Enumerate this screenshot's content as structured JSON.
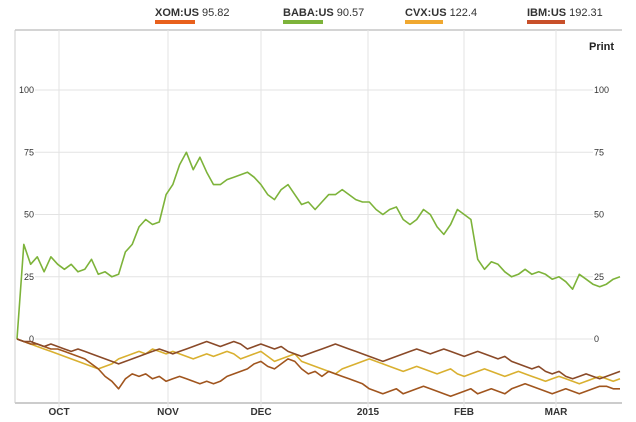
{
  "legend": [
    {
      "symbol": "XOM:US",
      "value": "95.82",
      "color": "#e8601c"
    },
    {
      "symbol": "BABA:US",
      "value": "90.57",
      "color": "#7db33a"
    },
    {
      "symbol": "CVX:US",
      "value": "122.4",
      "color": "#f0a830"
    },
    {
      "symbol": "IBM:US",
      "value": "192.31",
      "color": "#c8502a"
    }
  ],
  "print_label": "Print",
  "chart_data": {
    "type": "line",
    "x_labels": [
      "OCT",
      "NOV",
      "DEC",
      "2015",
      "FEB",
      "MAR"
    ],
    "y_ticks": [
      0,
      25,
      50,
      75,
      100
    ],
    "ylim": [
      -25,
      115
    ],
    "grid": true,
    "series": [
      {
        "name": "BABA:US",
        "color": "#7db33a",
        "values": [
          0,
          38,
          30,
          33,
          27,
          33,
          30,
          28,
          30,
          27,
          28,
          32,
          26,
          27,
          25,
          26,
          35,
          38,
          45,
          48,
          46,
          47,
          58,
          62,
          70,
          75,
          68,
          73,
          67,
          62,
          62,
          64,
          65,
          66,
          67,
          65,
          62,
          58,
          56,
          60,
          62,
          58,
          54,
          55,
          52,
          55,
          58,
          58,
          60,
          58,
          56,
          55,
          55,
          52,
          50,
          52,
          53,
          48,
          46,
          48,
          52,
          50,
          45,
          42,
          46,
          52,
          50,
          48,
          32,
          28,
          31,
          30,
          27,
          25,
          26,
          28,
          26,
          27,
          26,
          24,
          25,
          23,
          20,
          26,
          24,
          22,
          21,
          22,
          24,
          25
        ]
      },
      {
        "name": "XOM:US",
        "color": "#a0551e",
        "values": [
          0,
          -1,
          -2,
          -2,
          -3,
          -4,
          -4,
          -5,
          -6,
          -7,
          -8,
          -10,
          -12,
          -15,
          -17,
          -20,
          -16,
          -14,
          -15,
          -14,
          -16,
          -15,
          -17,
          -16,
          -15,
          -16,
          -17,
          -18,
          -17,
          -18,
          -17,
          -15,
          -14,
          -13,
          -12,
          -10,
          -9,
          -11,
          -12,
          -10,
          -8,
          -9,
          -12,
          -14,
          -13,
          -15,
          -13,
          -14,
          -15,
          -16,
          -17,
          -18,
          -20,
          -21,
          -22,
          -21,
          -20,
          -22,
          -21,
          -20,
          -19,
          -20,
          -21,
          -22,
          -23,
          -22,
          -21,
          -20,
          -22,
          -21,
          -20,
          -21,
          -22,
          -20,
          -19,
          -18,
          -19,
          -20,
          -21,
          -22,
          -21,
          -20,
          -21,
          -22,
          -21,
          -20,
          -19,
          -19,
          -20,
          -20
        ]
      },
      {
        "name": "CVX:US",
        "color": "#d9b030",
        "values": [
          0,
          -1,
          -2,
          -3,
          -4,
          -5,
          -6,
          -7,
          -8,
          -9,
          -10,
          -11,
          -12,
          -11,
          -10,
          -8,
          -7,
          -6,
          -5,
          -6,
          -4,
          -5,
          -6,
          -5,
          -6,
          -7,
          -8,
          -7,
          -6,
          -7,
          -6,
          -5,
          -6,
          -8,
          -7,
          -6,
          -5,
          -7,
          -9,
          -8,
          -7,
          -6,
          -9,
          -10,
          -11,
          -12,
          -13,
          -14,
          -12,
          -11,
          -10,
          -9,
          -8,
          -9,
          -10,
          -11,
          -12,
          -13,
          -12,
          -11,
          -12,
          -13,
          -14,
          -13,
          -12,
          -14,
          -15,
          -14,
          -13,
          -12,
          -13,
          -14,
          -15,
          -14,
          -13,
          -14,
          -15,
          -16,
          -17,
          -16,
          -15,
          -16,
          -17,
          -18,
          -17,
          -16,
          -15,
          -16,
          -17,
          -16
        ]
      },
      {
        "name": "IBM:US",
        "color": "#8a4a28",
        "values": [
          0,
          -1,
          -1,
          -2,
          -3,
          -2,
          -3,
          -4,
          -5,
          -4,
          -5,
          -6,
          -7,
          -8,
          -9,
          -10,
          -9,
          -8,
          -7,
          -6,
          -5,
          -4,
          -5,
          -6,
          -5,
          -4,
          -3,
          -2,
          -1,
          -2,
          -3,
          -2,
          -1,
          -2,
          -4,
          -3,
          -2,
          -3,
          -4,
          -3,
          -5,
          -6,
          -7,
          -6,
          -5,
          -4,
          -3,
          -2,
          -3,
          -4,
          -5,
          -6,
          -7,
          -8,
          -9,
          -8,
          -7,
          -6,
          -5,
          -4,
          -5,
          -6,
          -5,
          -4,
          -5,
          -6,
          -7,
          -6,
          -5,
          -6,
          -7,
          -8,
          -7,
          -9,
          -10,
          -11,
          -12,
          -11,
          -13,
          -14,
          -13,
          -15,
          -16,
          -15,
          -14,
          -15,
          -16,
          -15,
          -14,
          -13
        ]
      }
    ]
  }
}
